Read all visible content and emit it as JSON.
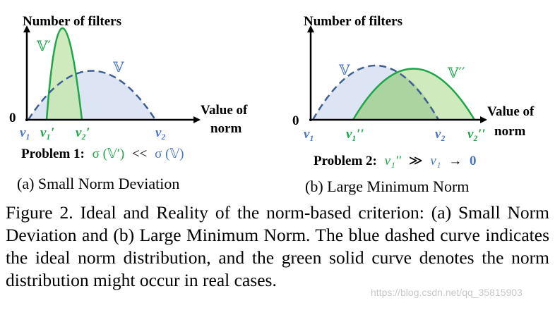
{
  "colors": {
    "ideal_stroke": "#3d5f96",
    "ideal_fill": "#dde4f3",
    "real_stroke": "#1ea64a",
    "real_fill": "#c7e6b0",
    "overlap_fill": "#acd4a0",
    "label_blue": "#4a78c0",
    "label_green": "#1ea64a"
  },
  "panel_a": {
    "ylabel": "Number of filters",
    "xlabel_line1": "Value of",
    "xlabel_line2": "norm",
    "origin": "0",
    "set_real": "𝕍′",
    "set_ideal": "𝕍",
    "ticks": [
      {
        "text": "v₁",
        "color": "blue"
      },
      {
        "text": "v₁′",
        "color": "green"
      },
      {
        "text": "v₂′",
        "color": "green"
      },
      {
        "text": "v₂",
        "color": "blue"
      }
    ],
    "problem_label": "Problem 1:",
    "problem_lhs": "σ (𝕍′)",
    "problem_op": "<<",
    "problem_rhs": "σ (𝕍)",
    "subcaption": "(a) Small Norm Deviation"
  },
  "panel_b": {
    "ylabel": "Number of filters",
    "xlabel_line1": "Value of",
    "xlabel_line2": "norm",
    "origin": "0",
    "set_real": "𝕍′′",
    "set_ideal": "𝕍",
    "ticks": [
      {
        "text": "v₁",
        "color": "blue"
      },
      {
        "text": "v₁′′",
        "color": "green"
      },
      {
        "text": "v₂",
        "color": "blue"
      },
      {
        "text": "v₂′′",
        "color": "green"
      }
    ],
    "problem_label": "Problem 2:",
    "problem_lhs": "v₁′′",
    "problem_op": "≫",
    "problem_rhs": "v₁",
    "problem_arrow": "→",
    "problem_end": "0",
    "subcaption": "(b) Large Minimum Norm"
  },
  "caption": "Figure 2.  Ideal and Reality of the norm-based criterion: (a) Small Norm Deviation and (b) Large Minimum Norm. The blue dashed curve indicates the ideal norm distribution, and the green solid curve denotes the norm distribution might occur in real cases.",
  "watermark": "https://blog.csdn.net/qq_35815903"
}
